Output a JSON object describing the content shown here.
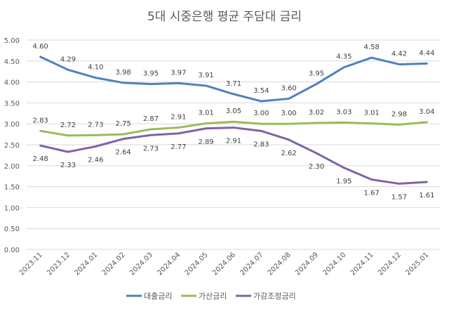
{
  "chart_data": {
    "type": "line",
    "title": "5대 시중은행 평균 주담대 금리",
    "xlabel": "",
    "ylabel": "",
    "ylim": [
      0,
      5
    ],
    "ytick_step": 0.5,
    "yticks": [
      "0.00",
      "0.50",
      "1.00",
      "1.50",
      "2.00",
      "2.50",
      "3.00",
      "3.50",
      "4.00",
      "4.50",
      "5.00"
    ],
    "grid": true,
    "legend_position": "bottom",
    "categories": [
      "2023.11",
      "2023.12",
      "2024.01",
      "2024.02",
      "2024.03",
      "2024.04",
      "2024.05",
      "2024.06",
      "2024.07",
      "2024.08",
      "2024.09",
      "2024.10",
      "2024.11",
      "2024.12",
      "2025.01"
    ],
    "series": [
      {
        "name": "대출금리",
        "color": "#4F81BD",
        "label_side": "above",
        "values": [
          4.6,
          4.29,
          4.1,
          3.98,
          3.95,
          3.97,
          3.91,
          3.71,
          3.54,
          3.6,
          3.95,
          4.35,
          4.58,
          4.42,
          4.44
        ]
      },
      {
        "name": "가산금리",
        "color": "#9BBB59",
        "label_side": "above",
        "values": [
          2.83,
          2.72,
          2.73,
          2.75,
          2.87,
          2.91,
          3.01,
          3.05,
          3.0,
          3.0,
          3.02,
          3.03,
          3.01,
          2.98,
          3.04
        ]
      },
      {
        "name": "가감조정금리",
        "color": "#8064A2",
        "label_side": "below",
        "values": [
          2.48,
          2.33,
          2.46,
          2.64,
          2.73,
          2.77,
          2.89,
          2.91,
          2.83,
          2.62,
          2.3,
          1.95,
          1.67,
          1.57,
          1.61
        ]
      }
    ]
  }
}
